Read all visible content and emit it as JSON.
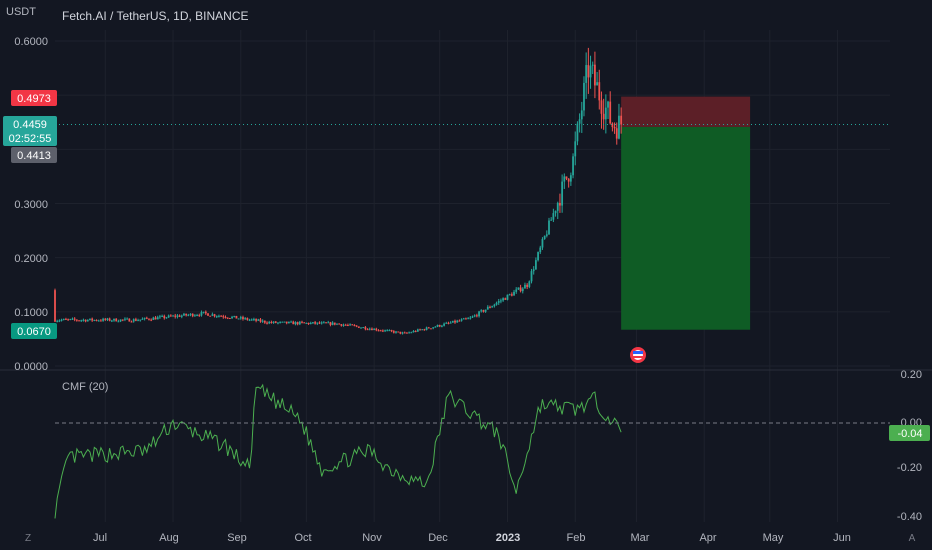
{
  "header": {
    "symbol": "Fetch.AI / TetherUS, 1D, BINANCE",
    "unit": "USDT"
  },
  "price_axis": {
    "ticks": [
      "0.6000",
      "0.3000",
      "0.2000",
      "0.1000",
      "0.0000"
    ],
    "badges": {
      "stop": "0.4973",
      "last": "0.4459",
      "countdown": "02:52:55",
      "prev": "0.4413",
      "target": "0.0670"
    }
  },
  "indicator": {
    "label": "CMF (20)",
    "ticks": [
      "0.20",
      "0.00",
      "-0.20",
      "-0.40"
    ],
    "current": "-0.04"
  },
  "time_axis": {
    "labels": [
      "Jul",
      "Aug",
      "Sep",
      "Oct",
      "Nov",
      "Dec",
      "2023",
      "Feb",
      "Mar",
      "Apr",
      "May",
      "Jun"
    ]
  },
  "footer": {
    "left_icon": "Z",
    "right_icon": "A"
  },
  "colors": {
    "up": "#26a69a",
    "down": "#ef5350",
    "cmf": "#4caf50",
    "bg": "#131722"
  },
  "chart_data": [
    {
      "type": "candlestick",
      "title": "Fetch.AI / TetherUS, 1D, BINANCE",
      "ylabel": "USDT",
      "ylim": [
        0,
        0.6
      ],
      "x_range": [
        "2022-06-08",
        "2023-06-25"
      ],
      "monthly_close_approx": [
        [
          "2022-06-15",
          0.085
        ],
        [
          "2022-07-15",
          0.085
        ],
        [
          "2022-08-15",
          0.097
        ],
        [
          "2022-09-15",
          0.08
        ],
        [
          "2022-10-15",
          0.078
        ],
        [
          "2022-11-15",
          0.06
        ],
        [
          "2022-12-15",
          0.088
        ],
        [
          "2023-01-10",
          0.15
        ],
        [
          "2023-01-31",
          0.38
        ],
        [
          "2023-02-07",
          0.55
        ],
        [
          "2023-02-18",
          0.4459
        ]
      ],
      "last_price": 0.4459,
      "prev_close": 0.4413,
      "position": {
        "type": "short",
        "entry": 0.4413,
        "stop": 0.4973,
        "target": 0.067
      }
    },
    {
      "type": "line",
      "title": "CMF (20)",
      "ylim": [
        -0.45,
        0.2
      ],
      "reference_line": 0,
      "last_value": -0.04
    }
  ]
}
